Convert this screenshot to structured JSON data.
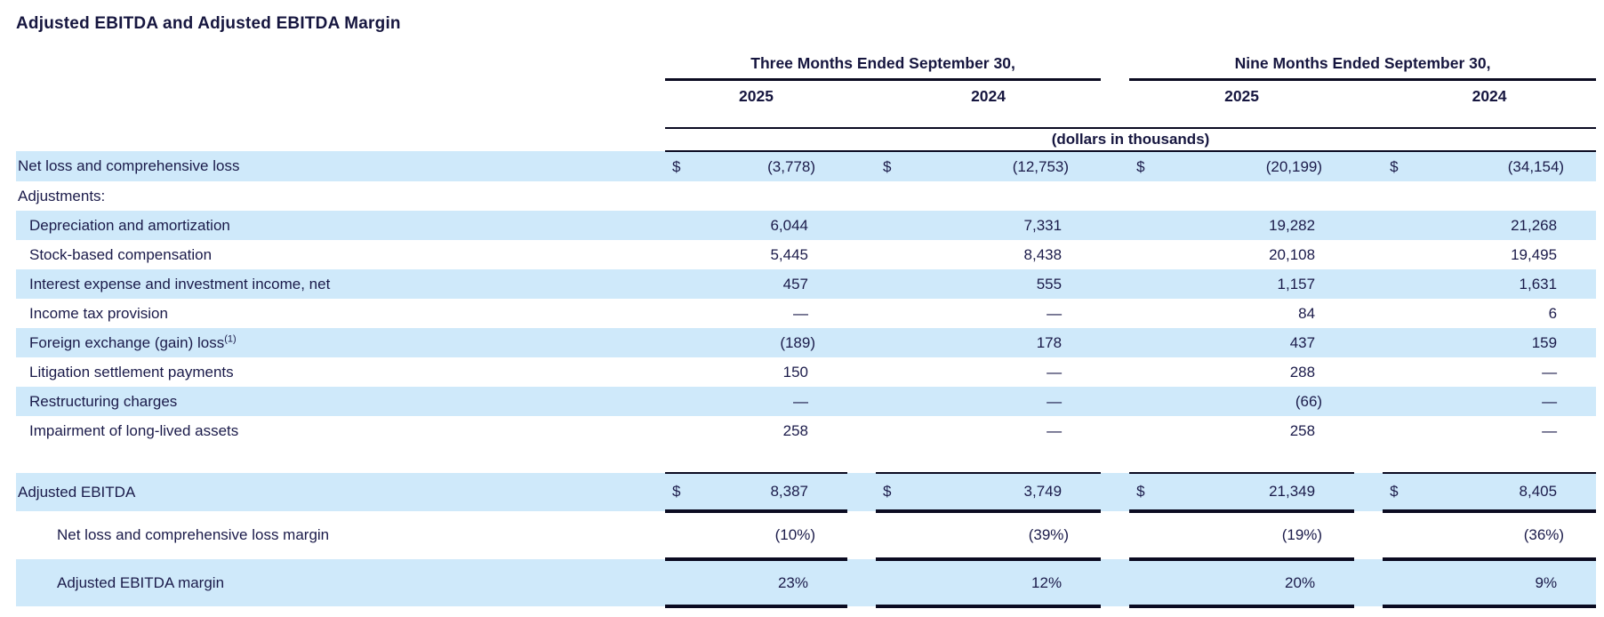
{
  "title": "Adjusted EBITDA and Adjusted EBITDA Margin",
  "colors": {
    "row_shade": "#cfe9fa",
    "text": "#1b1b4a",
    "rule_line": "#0b0b21"
  },
  "table": {
    "units_note": "(dollars in thousands)",
    "col_groups": [
      {
        "label": "Three Months Ended September 30,",
        "years": [
          "2025",
          "2024"
        ]
      },
      {
        "label": "Nine Months Ended September 30,",
        "years": [
          "2025",
          "2024"
        ]
      }
    ],
    "rows": [
      {
        "label": "Net loss and comprehensive loss",
        "indent": 0,
        "shaded": true,
        "currency": "$",
        "values": [
          "(3,778)",
          "(12,753)",
          "(20,199)",
          "(34,154)"
        ]
      },
      {
        "label": "Adjustments:",
        "indent": 0,
        "shaded": false,
        "currency": "",
        "values": [
          "",
          "",
          "",
          ""
        ]
      },
      {
        "label": "Depreciation and amortization",
        "indent": 1,
        "shaded": true,
        "currency": "",
        "values": [
          "6,044",
          "7,331",
          "19,282",
          "21,268"
        ]
      },
      {
        "label": "Stock-based compensation",
        "indent": 1,
        "shaded": false,
        "currency": "",
        "values": [
          "5,445",
          "8,438",
          "20,108",
          "19,495"
        ]
      },
      {
        "label": "Interest expense and investment income, net",
        "indent": 1,
        "shaded": true,
        "currency": "",
        "values": [
          "457",
          "555",
          "1,157",
          "1,631"
        ]
      },
      {
        "label": "Income tax provision",
        "indent": 1,
        "shaded": false,
        "currency": "",
        "values": [
          "—",
          "—",
          "84",
          "6"
        ]
      },
      {
        "label": "Foreign exchange (gain) loss",
        "sup": "(1)",
        "indent": 1,
        "shaded": true,
        "currency": "",
        "values": [
          "(189)",
          "178",
          "437",
          "159"
        ]
      },
      {
        "label": "Litigation settlement payments",
        "indent": 1,
        "shaded": false,
        "currency": "",
        "values": [
          "150",
          "—",
          "288",
          "—"
        ]
      },
      {
        "label": "Restructuring charges",
        "indent": 1,
        "shaded": true,
        "currency": "",
        "values": [
          "—",
          "—",
          "(66)",
          "—"
        ]
      },
      {
        "label": "Impairment of long-lived assets",
        "indent": 1,
        "shaded": false,
        "currency": "",
        "values": [
          "258",
          "—",
          "258",
          "—"
        ]
      },
      {
        "label": "Adjusted EBITDA",
        "indent": 0,
        "shaded": true,
        "currency": "$",
        "style": "total",
        "values": [
          "8,387",
          "3,749",
          "21,349",
          "8,405"
        ]
      },
      {
        "label": "Net loss and comprehensive loss margin",
        "indent": 2,
        "shaded": false,
        "currency": "",
        "style": "margin1",
        "values": [
          "(10%)",
          "(39%)",
          "(19%)",
          "(36%)"
        ]
      },
      {
        "label": "Adjusted EBITDA margin",
        "indent": 2,
        "shaded": true,
        "currency": "",
        "style": "margin2",
        "values": [
          "23%",
          "12%",
          "20%",
          "9%"
        ]
      }
    ]
  }
}
